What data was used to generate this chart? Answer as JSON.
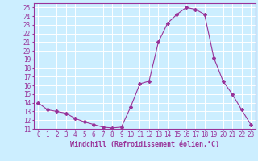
{
  "x": [
    0,
    1,
    2,
    3,
    4,
    5,
    6,
    7,
    8,
    9,
    10,
    11,
    12,
    13,
    14,
    15,
    16,
    17,
    18,
    19,
    20,
    21,
    22,
    23
  ],
  "y": [
    14,
    13.2,
    13,
    12.8,
    12.2,
    11.8,
    11.5,
    11.2,
    11.1,
    11.2,
    13.5,
    16.2,
    16.5,
    21.0,
    23.2,
    24.2,
    25.0,
    24.8,
    24.2,
    19.2,
    16.5,
    15.0,
    13.2,
    11.5
  ],
  "line_color": "#993399",
  "marker": "D",
  "marker_size": 2,
  "bg_color": "#cceeff",
  "grid_color": "#ffffff",
  "xlabel": "Windchill (Refroidissement éolien,°C)",
  "xlabel_fontsize": 6.0,
  "tick_fontsize": 5.5,
  "ylim": [
    11,
    25.5
  ],
  "xlim": [
    -0.5,
    23.5
  ],
  "yticks": [
    11,
    12,
    13,
    14,
    15,
    16,
    17,
    18,
    19,
    20,
    21,
    22,
    23,
    24,
    25
  ],
  "xticks": [
    0,
    1,
    2,
    3,
    4,
    5,
    6,
    7,
    8,
    9,
    10,
    11,
    12,
    13,
    14,
    15,
    16,
    17,
    18,
    19,
    20,
    21,
    22,
    23
  ]
}
